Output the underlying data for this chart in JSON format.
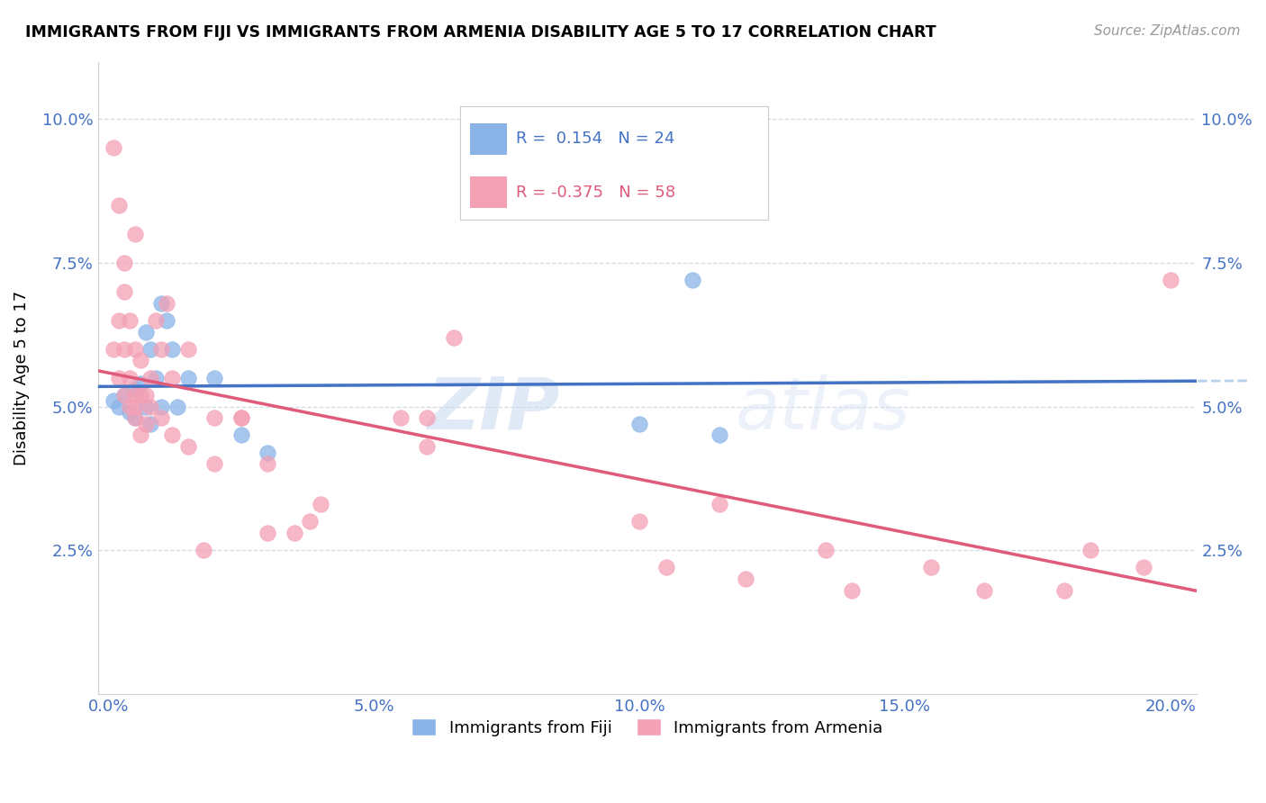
{
  "title": "IMMIGRANTS FROM FIJI VS IMMIGRANTS FROM ARMENIA DISABILITY AGE 5 TO 17 CORRELATION CHART",
  "source": "Source: ZipAtlas.com",
  "ylabel": "Disability Age 5 to 17",
  "xlabel_ticks": [
    "0.0%",
    "5.0%",
    "10.0%",
    "15.0%",
    "20.0%"
  ],
  "xlabel_vals": [
    0.0,
    0.05,
    0.1,
    0.15,
    0.2
  ],
  "ylabel_ticks": [
    "2.5%",
    "5.0%",
    "7.5%",
    "10.0%"
  ],
  "ylabel_vals": [
    0.025,
    0.05,
    0.075,
    0.1
  ],
  "ymin": 0.0,
  "ymax": 0.11,
  "xmin": -0.002,
  "xmax": 0.205,
  "fiji_color": "#8ab4e8",
  "armenia_color": "#f4a0b5",
  "fiji_label": "Immigrants from Fiji",
  "armenia_label": "Immigrants from Armenia",
  "fiji_R": "0.154",
  "fiji_N": "24",
  "armenia_R": "-0.375",
  "armenia_N": "58",
  "trend_fiji_color": "#4472c4",
  "trend_armenia_color": "#e05a7a",
  "dashed_fiji_color": "#a8c8e8",
  "watermark_text": "ZIP",
  "watermark_text2": "atlas",
  "fiji_scatter_x": [
    0.001,
    0.002,
    0.003,
    0.004,
    0.005,
    0.005,
    0.006,
    0.007,
    0.007,
    0.008,
    0.008,
    0.009,
    0.01,
    0.01,
    0.011,
    0.012,
    0.013,
    0.015,
    0.02,
    0.025,
    0.03,
    0.1,
    0.11,
    0.115
  ],
  "fiji_scatter_y": [
    0.051,
    0.05,
    0.052,
    0.049,
    0.053,
    0.048,
    0.054,
    0.063,
    0.05,
    0.06,
    0.047,
    0.055,
    0.068,
    0.05,
    0.065,
    0.06,
    0.05,
    0.055,
    0.055,
    0.045,
    0.042,
    0.047,
    0.072,
    0.045
  ],
  "armenia_scatter_x": [
    0.001,
    0.001,
    0.002,
    0.002,
    0.003,
    0.003,
    0.003,
    0.004,
    0.004,
    0.004,
    0.005,
    0.005,
    0.005,
    0.005,
    0.006,
    0.006,
    0.006,
    0.007,
    0.007,
    0.008,
    0.008,
    0.009,
    0.01,
    0.01,
    0.011,
    0.012,
    0.012,
    0.015,
    0.015,
    0.018,
    0.02,
    0.02,
    0.025,
    0.025,
    0.03,
    0.03,
    0.035,
    0.038,
    0.04,
    0.055,
    0.06,
    0.06,
    0.065,
    0.1,
    0.105,
    0.115,
    0.12,
    0.135,
    0.14,
    0.155,
    0.165,
    0.18,
    0.185,
    0.195,
    0.2,
    0.005,
    0.003,
    0.002
  ],
  "armenia_scatter_y": [
    0.095,
    0.06,
    0.085,
    0.055,
    0.07,
    0.06,
    0.052,
    0.065,
    0.055,
    0.05,
    0.06,
    0.052,
    0.05,
    0.048,
    0.058,
    0.052,
    0.045,
    0.052,
    0.047,
    0.055,
    0.05,
    0.065,
    0.06,
    0.048,
    0.068,
    0.055,
    0.045,
    0.06,
    0.043,
    0.025,
    0.048,
    0.04,
    0.048,
    0.048,
    0.04,
    0.028,
    0.028,
    0.03,
    0.033,
    0.048,
    0.048,
    0.043,
    0.062,
    0.03,
    0.022,
    0.033,
    0.02,
    0.025,
    0.018,
    0.022,
    0.018,
    0.018,
    0.025,
    0.022,
    0.072,
    0.08,
    0.075,
    0.065
  ]
}
